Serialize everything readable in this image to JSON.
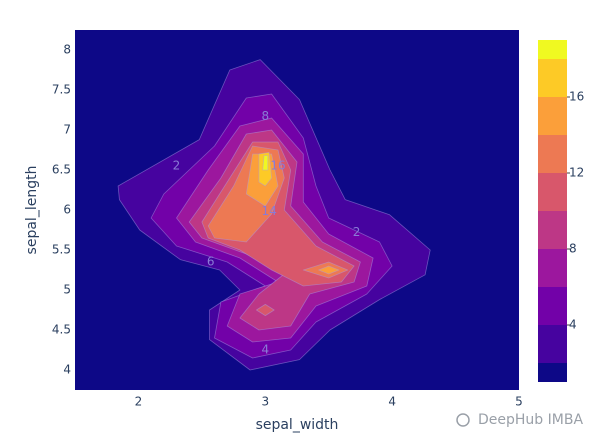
{
  "chart_data": {
    "type": "contour",
    "xlabel": "sepal_width",
    "ylabel": "sepal_length",
    "xlim": [
      1.5,
      5
    ],
    "ylim": [
      3.75,
      8.25
    ],
    "xticks": [
      2,
      3,
      4,
      5
    ],
    "yticks": [
      4,
      4.5,
      5,
      5.5,
      6,
      6.5,
      7,
      7.5,
      8
    ],
    "levels": [
      0,
      2,
      4,
      6,
      8,
      10,
      12,
      14,
      16,
      18
    ],
    "colors": [
      "#0d0887",
      "#46039f",
      "#7201a8",
      "#9c179e",
      "#bd3786",
      "#d8576b",
      "#ed7953",
      "#fb9f3a",
      "#fdca26",
      "#f0f921"
    ],
    "colorbar": {
      "lim": [
        1,
        19
      ],
      "ticks": [
        4,
        8,
        12,
        16
      ]
    },
    "contours": [
      {
        "level": 2,
        "x": [
          1.84,
          2.48,
          2.72,
          2.96,
          3.27,
          3.51,
          3.63,
          3.98,
          4.3,
          4.26,
          3.9,
          3.51,
          3.27,
          2.88,
          2.56,
          2.56,
          2.8,
          2.64,
          2.33,
          2.01,
          1.85
        ],
        "y": [
          6.3,
          6.88,
          7.75,
          7.88,
          7.38,
          6.5,
          6.13,
          5.94,
          5.5,
          5.19,
          4.88,
          4.5,
          4.13,
          4.0,
          4.38,
          4.75,
          5.0,
          5.25,
          5.38,
          5.75,
          6.13
        ]
      },
      {
        "level": 4,
        "x": [
          2.2,
          2.6,
          2.85,
          3.05,
          3.3,
          3.4,
          3.5,
          3.9,
          4.0,
          3.8,
          3.4,
          3.2,
          2.9,
          2.6,
          2.65,
          3.0,
          2.7,
          2.3,
          2.1
        ],
        "y": [
          6.2,
          6.8,
          7.4,
          7.45,
          6.9,
          6.3,
          5.9,
          5.6,
          5.3,
          4.95,
          4.6,
          4.25,
          4.15,
          4.4,
          4.85,
          5.05,
          5.35,
          5.55,
          5.9
        ]
      },
      {
        "level": 6,
        "x": [
          2.3,
          2.55,
          2.8,
          3.05,
          3.3,
          3.3,
          3.5,
          3.85,
          3.8,
          3.4,
          3.2,
          2.9,
          2.7,
          2.8,
          3.1,
          2.8,
          2.45
        ],
        "y": [
          5.9,
          6.5,
          7.05,
          7.15,
          6.7,
          6.1,
          5.7,
          5.4,
          5.05,
          4.8,
          4.4,
          4.35,
          4.55,
          4.95,
          5.1,
          5.4,
          5.6
        ]
      },
      {
        "level": 8,
        "x": [
          2.4,
          2.65,
          2.85,
          3.05,
          3.25,
          3.2,
          3.45,
          3.75,
          3.7,
          3.35,
          3.2,
          2.95,
          2.8,
          2.95,
          3.15,
          2.85,
          2.5
        ],
        "y": [
          5.85,
          6.4,
          6.95,
          7.0,
          6.6,
          6.05,
          5.6,
          5.35,
          5.1,
          4.95,
          4.55,
          4.5,
          4.65,
          4.95,
          5.2,
          5.45,
          5.65
        ]
      },
      {
        "level": 10,
        "x": [
          2.5,
          2.7,
          2.9,
          3.1,
          3.2,
          3.15,
          3.4,
          3.7,
          3.6,
          3.3,
          3.05,
          2.8,
          2.55
        ],
        "y": [
          5.85,
          6.35,
          6.85,
          6.85,
          6.5,
          6.0,
          5.55,
          5.3,
          5.1,
          5.05,
          5.25,
          5.5,
          5.65
        ]
      },
      {
        "level": 10,
        "x": [
          2.93,
          3.0,
          3.07,
          3.0
        ],
        "y": [
          4.75,
          4.82,
          4.75,
          4.68
        ]
      },
      {
        "level": 12,
        "x": [
          2.55,
          2.75,
          2.9,
          3.1,
          3.15,
          3.05,
          2.85,
          2.6
        ],
        "y": [
          5.8,
          6.3,
          6.8,
          6.75,
          6.4,
          5.95,
          5.6,
          5.65
        ]
      },
      {
        "level": 12,
        "x": [
          3.3,
          3.5,
          3.65,
          3.5
        ],
        "y": [
          5.25,
          5.35,
          5.25,
          5.15
        ]
      },
      {
        "level": 14,
        "x": [
          2.85,
          2.9,
          3.05,
          3.1,
          3.0
        ],
        "y": [
          6.2,
          6.7,
          6.7,
          6.3,
          6.05
        ]
      },
      {
        "level": 14,
        "x": [
          3.42,
          3.5,
          3.58,
          3.5
        ],
        "y": [
          5.25,
          5.3,
          5.25,
          5.2
        ]
      },
      {
        "level": 16,
        "x": [
          2.95,
          2.95,
          3.03,
          3.05,
          3.0
        ],
        "y": [
          6.35,
          6.7,
          6.72,
          6.4,
          6.3
        ]
      },
      {
        "level": 18,
        "x": [
          2.98,
          2.99,
          3.02,
          3.02
        ],
        "y": [
          6.5,
          6.68,
          6.68,
          6.5
        ]
      }
    ],
    "contour_labels": [
      {
        "value": 2,
        "x": 2.3,
        "y": 6.55
      },
      {
        "value": 2,
        "x": 3.72,
        "y": 5.72
      },
      {
        "value": 4,
        "x": 3.0,
        "y": 4.25
      },
      {
        "value": 6,
        "x": 2.57,
        "y": 5.35
      },
      {
        "value": 8,
        "x": 3.0,
        "y": 7.17
      },
      {
        "value": 14,
        "x": 3.03,
        "y": 5.98
      },
      {
        "value": 16,
        "x": 3.1,
        "y": 6.55
      }
    ],
    "watermark": "DeepHub IMBA"
  }
}
